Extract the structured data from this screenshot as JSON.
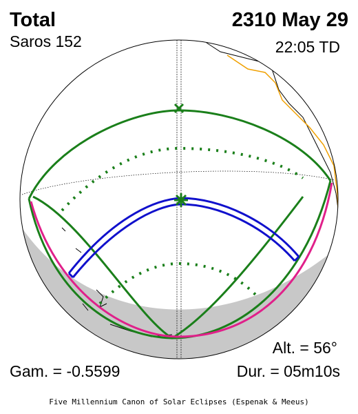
{
  "header": {
    "type": "Total",
    "saros": "Saros 152",
    "date": "2310 May 29",
    "time": "22:05 TD"
  },
  "stats": {
    "altitude": "Alt. = 56°",
    "gamma": "Gam. = -0.5599",
    "duration": "Dur. = 05m10s"
  },
  "footer": {
    "credit": "Five Millennium Canon of Solar Eclipses (Espenak & Meeus)"
  }
}
